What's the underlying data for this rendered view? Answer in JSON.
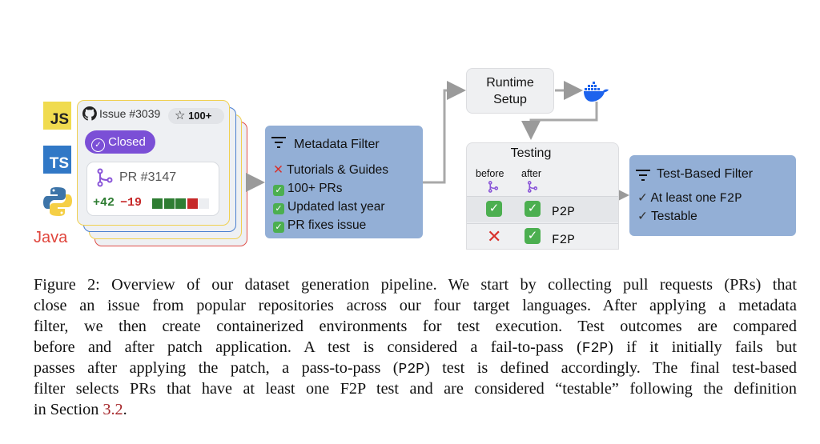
{
  "languages": {
    "js": "JS",
    "ts": "TS",
    "java": "Java"
  },
  "issue_card": {
    "issue": "Issue #3039",
    "stars": "100+",
    "status": "Closed",
    "pr": "PR #3147",
    "additions": "+42",
    "deletions": "−19",
    "diff_blocks": [
      "add",
      "add",
      "add",
      "del",
      "neutral"
    ]
  },
  "metadata_filter": {
    "title": "Metadata Filter",
    "items": [
      {
        "mark": "cross",
        "label": "Tutorials & Guides"
      },
      {
        "mark": "check",
        "label": "100+ PRs"
      },
      {
        "mark": "check",
        "label": "Updated last year"
      },
      {
        "mark": "check",
        "label": "PR fixes issue"
      }
    ]
  },
  "runtime": {
    "line1": "Runtime",
    "line2": "Setup"
  },
  "testing": {
    "title": "Testing",
    "before": "before",
    "after": "after",
    "rows": [
      {
        "before": "check",
        "after": "check",
        "label": "P2P"
      },
      {
        "before": "cross",
        "after": "check",
        "label": "F2P"
      }
    ]
  },
  "test_filter": {
    "title": "Test-Based Filter",
    "item1_text": "At least one ",
    "item1_mono": "F2P",
    "item2": "Testable"
  },
  "caption": {
    "l1": "Figure 2: Overview of our dataset generation pipeline. We start by collecting pull requests (PRs) that",
    "l2": "close an issue from popular repositories across our four target languages. After applying a metadata",
    "l3": "filter, we then create containerized environments for test execution.  Test outcomes are compared",
    "l4a": "before and after patch application.  A test is considered a fail-to-pass (",
    "l4m": "F2P",
    "l4b": ") if it initially fails but",
    "l5a": "passes after applying the patch, a pass-to-pass (",
    "l5m": "P2P",
    "l5b": ") test is defined accordingly. The final test-based",
    "l6": "filter selects PRs that have at least one F2P test and are considered “testable” following the definition",
    "l7a": "in Section ",
    "l7link": "3.2",
    "l7b": "."
  },
  "colors": {
    "filter_box": "#93afd6",
    "closed_badge": "#7b4fd6",
    "docker": "#1d63ed",
    "link": "#a5262a"
  }
}
